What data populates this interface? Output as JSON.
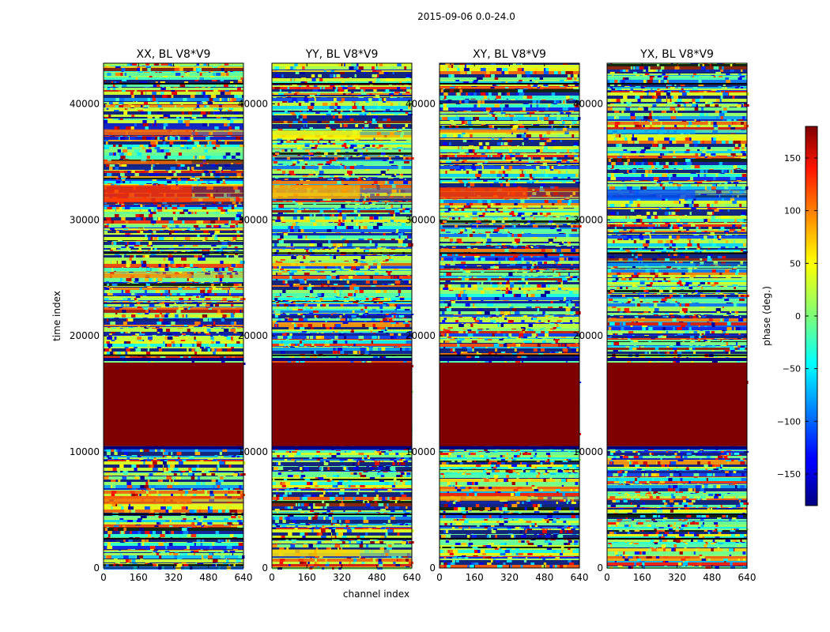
{
  "suptitle": "2015-09-06 0.0-24.0",
  "colormap": "jet",
  "chart_data": {
    "type": "heatmap",
    "x_label": "channel index",
    "y_label": "time index",
    "x_range": [
      0,
      640
    ],
    "y_range": [
      0,
      43500
    ],
    "x_ticks": [
      0,
      160,
      320,
      480,
      640
    ],
    "y_ticks": [
      0,
      10000,
      20000,
      30000,
      40000
    ],
    "panels": [
      {
        "title": "XX, BL V8*V9",
        "description": "phase waterfall; strong ~100 deg (red) bands near 31500-33000 and 37500, saturated block 10500-17700"
      },
      {
        "title": "YY, BL V8*V9",
        "description": "phase waterfall; yellow/orange bands near 31800-33000, 37000; saturated block 10500-17700"
      },
      {
        "title": "XY, BL V8*V9",
        "description": "phase waterfall; mostly noisy; saturated block 10500-17700"
      },
      {
        "title": "YX, BL V8*V9",
        "description": "phase waterfall; blue features near 32000; saturated block 10500-17700"
      }
    ],
    "saturated_block_time": [
      10500,
      17700
    ],
    "colorbar": {
      "label": "phase (deg.)",
      "range": [
        -180,
        180
      ],
      "ticks": [
        150,
        100,
        50,
        0,
        -50,
        -100,
        -150
      ],
      "tick_labels": [
        "150",
        "100",
        "50",
        "0",
        "−50",
        "−100",
        "−150"
      ]
    }
  }
}
